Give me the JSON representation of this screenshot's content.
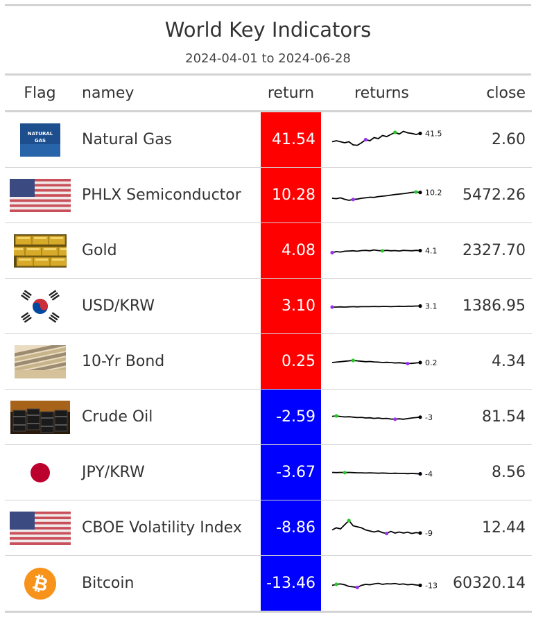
{
  "title": "World Key Indicators",
  "subtitle": "2024-04-01 to 2024-06-28",
  "headers": {
    "flag": "Flag",
    "name": "namey",
    "return": "return",
    "returns": "returns",
    "close": "close"
  },
  "colors": {
    "positive": "#ff0000",
    "negative": "#0000ff",
    "spark_line": "#000000",
    "spark_max": "#22cc22",
    "spark_min": "#9933ee"
  },
  "rows": [
    {
      "flag_icon": "natural-gas-image",
      "flag_text": "NATURAL GAS",
      "name": "Natural Gas",
      "return": "41.54",
      "sign": "pos",
      "spark_label": "41.5",
      "close": "2.60",
      "spark": [
        0.55,
        0.5,
        0.55,
        0.6,
        0.55,
        0.7,
        0.72,
        0.6,
        0.45,
        0.5,
        0.35,
        0.4,
        0.25,
        0.3,
        0.2,
        0.1,
        0.18,
        0.05,
        0.12,
        0.15,
        0.2,
        0.15
      ],
      "max_i": 15,
      "min_i": 8
    },
    {
      "flag_icon": "us-flag-icon",
      "name": "PHLX Semiconductor",
      "return": "10.28",
      "sign": "pos",
      "spark_label": "10.28",
      "close": "5472.26",
      "spark": [
        0.6,
        0.62,
        0.58,
        0.65,
        0.7,
        0.66,
        0.64,
        0.6,
        0.58,
        0.55,
        0.56,
        0.52,
        0.5,
        0.48,
        0.45,
        0.42,
        0.4,
        0.38,
        0.35,
        0.32,
        0.3,
        0.32
      ],
      "max_i": 20,
      "min_i": 5
    },
    {
      "flag_icon": "gold-bars-image",
      "name": "Gold",
      "return": "4.08",
      "sign": "pos",
      "spark_label": "4.1",
      "close": "2327.70",
      "spark": [
        0.55,
        0.5,
        0.52,
        0.48,
        0.47,
        0.46,
        0.48,
        0.45,
        0.44,
        0.46,
        0.42,
        0.45,
        0.46,
        0.44,
        0.46,
        0.45,
        0.47,
        0.44,
        0.45,
        0.46,
        0.44,
        0.45
      ],
      "max_i": 12,
      "min_i": 0
    },
    {
      "flag_icon": "korea-flag-icon",
      "name": "USD/KRW",
      "return": "3.10",
      "sign": "pos",
      "spark_label": "3.1",
      "close": "1386.95",
      "spark": [
        0.5,
        0.5,
        0.49,
        0.5,
        0.49,
        0.48,
        0.49,
        0.48,
        0.48,
        0.48,
        0.47,
        0.48,
        0.47,
        0.47,
        0.48,
        0.47,
        0.46,
        0.47,
        0.46,
        0.46,
        0.45,
        0.45
      ],
      "max_i": 21,
      "min_i": 0
    },
    {
      "flag_icon": "bond-image",
      "name": "10-Yr Bond",
      "return": "0.25",
      "sign": "pos",
      "spark_label": "0.2",
      "close": "4.34",
      "spark": [
        0.5,
        0.48,
        0.46,
        0.44,
        0.42,
        0.4,
        0.42,
        0.44,
        0.46,
        0.45,
        0.47,
        0.48,
        0.5,
        0.49,
        0.5,
        0.52,
        0.51,
        0.53,
        0.55,
        0.54,
        0.52,
        0.5
      ],
      "max_i": 5,
      "min_i": 18
    },
    {
      "flag_icon": "crude-oil-image",
      "name": "Crude Oil",
      "return": "-2.59",
      "sign": "neg",
      "spark_label": "-3",
      "close": "81.54",
      "spark": [
        0.42,
        0.4,
        0.43,
        0.45,
        0.44,
        0.46,
        0.48,
        0.47,
        0.5,
        0.49,
        0.52,
        0.5,
        0.53,
        0.52,
        0.55,
        0.56,
        0.54,
        0.56,
        0.53,
        0.5,
        0.48,
        0.46
      ],
      "max_i": 1,
      "min_i": 15
    },
    {
      "flag_icon": "japan-flag-icon",
      "name": "JPY/KRW",
      "return": "-3.67",
      "sign": "neg",
      "spark_label": "-4",
      "close": "8.56",
      "spark": [
        0.45,
        0.46,
        0.45,
        0.46,
        0.45,
        0.46,
        0.47,
        0.47,
        0.48,
        0.47,
        0.48,
        0.49,
        0.48,
        0.49,
        0.5,
        0.49,
        0.5,
        0.5,
        0.51,
        0.5,
        0.51,
        0.52
      ],
      "max_i": 3,
      "min_i": 21
    },
    {
      "flag_icon": "us-flag-icon",
      "name": "CBOE Volatility Index",
      "return": "-8.86",
      "sign": "neg",
      "spark_label": "-9",
      "close": "12.44",
      "spark": [
        0.55,
        0.45,
        0.5,
        0.3,
        0.1,
        0.35,
        0.4,
        0.45,
        0.55,
        0.6,
        0.65,
        0.6,
        0.68,
        0.72,
        0.62,
        0.7,
        0.65,
        0.7,
        0.66,
        0.72,
        0.68,
        0.7
      ],
      "max_i": 4,
      "min_i": 13
    },
    {
      "flag_icon": "bitcoin-icon",
      "name": "Bitcoin",
      "return": "-13.46",
      "sign": "neg",
      "spark_label": "-13",
      "close": "60320.14",
      "spark": [
        0.55,
        0.5,
        0.48,
        0.52,
        0.6,
        0.62,
        0.65,
        0.55,
        0.5,
        0.52,
        0.48,
        0.45,
        0.5,
        0.47,
        0.48,
        0.46,
        0.5,
        0.48,
        0.52,
        0.5,
        0.53,
        0.55
      ],
      "max_i": 1,
      "min_i": 6
    }
  ]
}
